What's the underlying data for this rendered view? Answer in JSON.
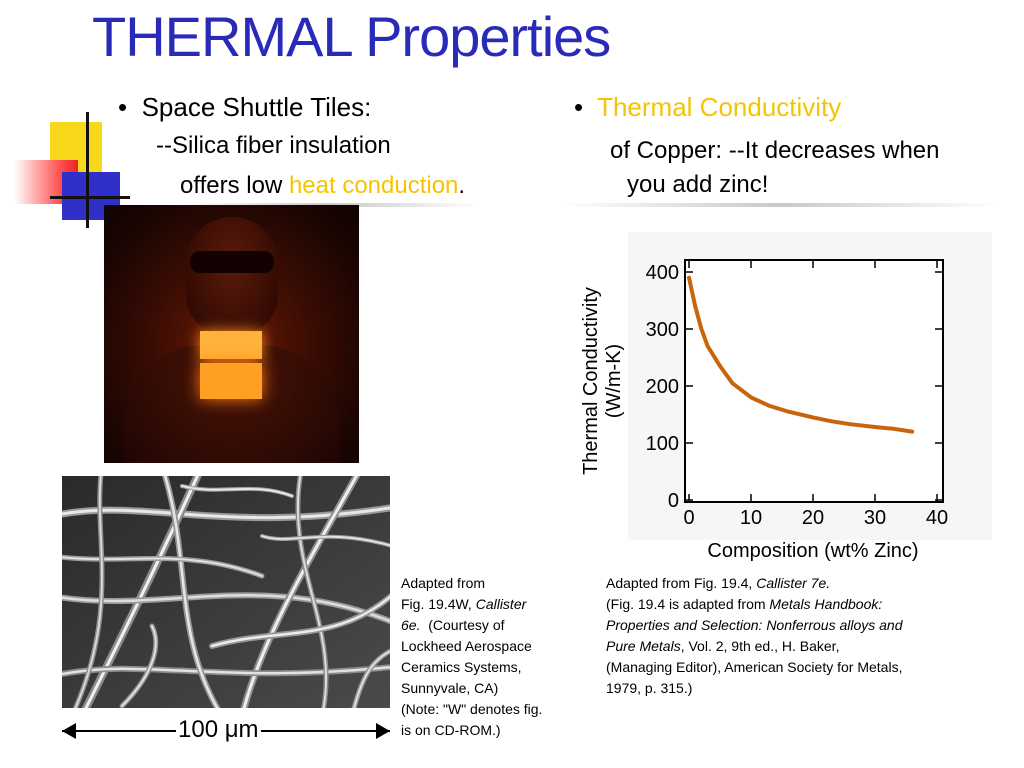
{
  "title": "THERMAL Properties",
  "left": {
    "bullet": "Space Shuttle Tiles:",
    "sub1": "--Silica fiber insulation",
    "sub2_pre": "offers low ",
    "sub2_highlight": "heat conduction",
    "sub2_post": "."
  },
  "right": {
    "bullet": "Thermal Conductivity",
    "sub1": "of Copper: --It decreases when",
    "sub2": "you add zinc!"
  },
  "scale_bar": {
    "value": "100",
    "unit": "μm"
  },
  "caption_left": {
    "l1": "Adapted from",
    "l2_pre": "Fig. 19.4W, ",
    "l2_italic": "Callister",
    "l3_italic": "6e.",
    "l3_post": "  (Courtesy of",
    "l4": "Lockheed Aerospace",
    "l5": "Ceramics Systems,",
    "l6": "Sunnyvale, CA)",
    "l7": "(Note:  \"W\" denotes fig.",
    "l8": "is on CD-ROM.)"
  },
  "caption_right": {
    "l1_pre": "Adapted from Fig. 19.4, ",
    "l1_italic": "Callister 7e.",
    "l2_pre": "(Fig. 19.4 is adapted from ",
    "l2_italic": "Metals Handbook:",
    "l3_italic": "Properties and Selection: Nonferrous alloys and",
    "l4_italic": "Pure Metals",
    "l4_post": ", Vol. 2, 9th ed., H. Baker,",
    "l5": "(Managing Editor), American Society for Metals,",
    "l6": "1979, p. 315.)"
  },
  "colors": {
    "title": "#2a2ab8",
    "highlight": "#f5c400",
    "curve": "#c8650a"
  },
  "chart_data": {
    "type": "line",
    "xlabel": "Composition (wt% Zinc)",
    "ylabel_line1": "Thermal Conductivity",
    "ylabel_line2": "(W/m-K)",
    "xlim": [
      0,
      40
    ],
    "ylim": [
      0,
      400
    ],
    "x_ticks": [
      0,
      10,
      20,
      30,
      40
    ],
    "y_ticks": [
      0,
      100,
      200,
      300,
      400
    ],
    "grid": false,
    "series": [
      {
        "x": [
          0,
          1,
          2,
          3,
          5,
          7,
          10,
          13,
          16,
          20,
          23,
          26,
          30,
          33,
          36
        ],
        "y": [
          390,
          340,
          300,
          270,
          235,
          205,
          180,
          165,
          155,
          145,
          138,
          133,
          128,
          125,
          120
        ]
      }
    ]
  }
}
